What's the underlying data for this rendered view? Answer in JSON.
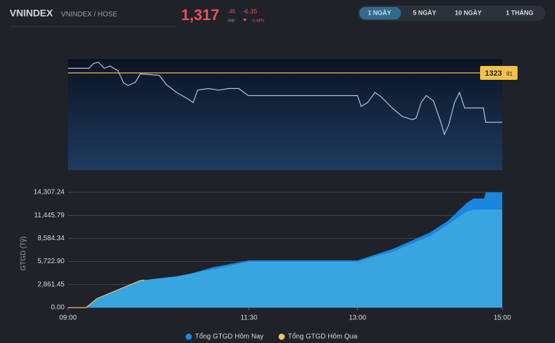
{
  "header": {
    "symbol": "VNINDEX",
    "exchange": "VNINDEX / HOSE",
    "price_int": "1,317",
    "price_dec": ".46",
    "currency": "VND",
    "change": "-6.35",
    "change_pct": "-0.48%"
  },
  "tabs": [
    "1 NGÀY",
    "5 NGÀY",
    "10 NGÀY",
    "1 THÁNG"
  ],
  "active_tab": 0,
  "chart_data": [
    {
      "type": "line",
      "color": "#a9c9e6",
      "x": [
        9.0,
        9.29,
        9.35,
        9.42,
        9.5,
        9.58,
        9.69,
        9.77,
        9.83,
        9.93,
        10.0,
        10.12,
        10.26,
        10.36,
        10.5,
        10.65,
        10.73,
        10.79,
        10.94,
        11.08,
        11.22,
        11.36,
        11.49,
        13.0,
        13.05,
        13.14,
        13.24,
        13.33,
        13.48,
        13.62,
        13.76,
        13.81,
        13.88,
        13.95,
        14.05,
        14.15,
        14.2,
        14.26,
        14.34,
        14.41,
        14.48,
        14.74,
        14.77,
        15.0
      ],
      "values": [
        1324.4,
        1324.4,
        1325.0,
        1325.2,
        1324.4,
        1324.7,
        1324.1,
        1322.5,
        1322.2,
        1322.6,
        1323.7,
        1323.6,
        1323.5,
        1322.3,
        1321.3,
        1320.5,
        1320.0,
        1321.6,
        1321.8,
        1321.6,
        1321.8,
        1321.8,
        1320.9,
        1320.9,
        1319.5,
        1320.0,
        1321.3,
        1320.7,
        1319.3,
        1318.2,
        1317.8,
        1318.0,
        1320.0,
        1320.9,
        1320.2,
        1317.5,
        1315.9,
        1317.1,
        1320.0,
        1321.3,
        1319.3,
        1319.3,
        1317.46,
        1317.46
      ],
      "xlim": [
        9,
        15
      ],
      "ylim": [
        1311.3,
        1325.6
      ],
      "reference": {
        "value": 1323.81,
        "label_int": "1323",
        "label_dec": "81",
        "color": "#f2c14e"
      }
    },
    {
      "type": "area",
      "y_label": "GTGD (Tỷ)",
      "x": [
        9.0,
        9.25,
        9.4,
        10.0,
        10.5,
        11.0,
        11.5,
        13.0,
        13.5,
        14.0,
        14.25,
        14.5,
        14.6,
        14.75,
        14.77,
        15.0
      ],
      "series": [
        {
          "name": "Tổng GTGD Hôm Nay",
          "color": "#1a86e0",
          "values": [
            0,
            0,
            690,
            2844,
            3706,
            5000,
            5861,
            5861,
            7326,
            9309,
            10774,
            12929,
            13532,
            13532,
            14307.24,
            14307.24
          ]
        },
        {
          "name": "Tổng GTGD Hôm Qua",
          "color": "#f5c35b",
          "values": [
            0,
            0,
            1120,
            3361,
            3879,
            4740,
            5689,
            5689,
            6981,
            8877,
            10300,
            11894,
            12153,
            12153,
            12153,
            12153
          ]
        }
      ],
      "xlim": [
        9,
        15
      ],
      "ylim": [
        0,
        15600
      ],
      "xticks": [
        {
          "value": 9,
          "label": "09:00"
        },
        {
          "value": 11.5,
          "label": "11:30"
        },
        {
          "value": 13,
          "label": "13:00"
        },
        {
          "value": 15,
          "label": "15:00"
        }
      ],
      "yticks": [
        {
          "value": 0,
          "label": "0.00"
        },
        {
          "value": 2861.45,
          "label": "2,861.45"
        },
        {
          "value": 5722.9,
          "label": "5,722.90"
        },
        {
          "value": 8584.34,
          "label": "8,584.34"
        },
        {
          "value": 11445.79,
          "label": "11,445.79"
        },
        {
          "value": 14307.24,
          "label": "14,307.24"
        }
      ],
      "grid": true
    }
  ]
}
